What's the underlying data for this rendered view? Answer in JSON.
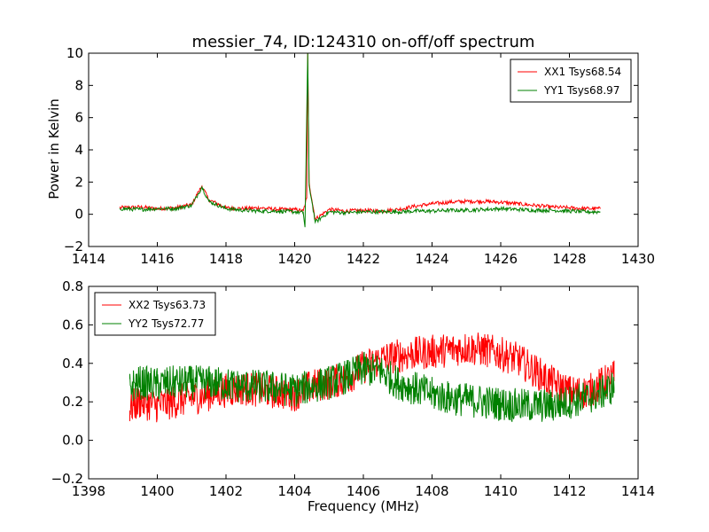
{
  "chart_data": [
    {
      "type": "line",
      "title": "messier_74, ID:124310 on-off/off spectrum",
      "ylabel": "Power in Kelvin",
      "xlabel": "",
      "xlim": [
        1414,
        1430
      ],
      "ylim": [
        -2,
        10
      ],
      "xticks": [
        "1414",
        "1416",
        "1418",
        "1420",
        "1422",
        "1424",
        "1426",
        "1428",
        "1430"
      ],
      "yticks": [
        "−2",
        "0",
        "2",
        "4",
        "6",
        "8",
        "10"
      ],
      "legend_position": "top-right",
      "grid": false,
      "series": [
        {
          "name": "XX1 Tsys68.54",
          "color": "#ff0000",
          "x": [
            1414.9,
            1415.5,
            1416.0,
            1416.5,
            1417.0,
            1417.2,
            1417.3,
            1417.5,
            1418.0,
            1418.5,
            1419.0,
            1419.5,
            1420.0,
            1420.25,
            1420.35,
            1420.38,
            1420.42,
            1420.5,
            1420.6,
            1421.0,
            1421.5,
            1422.0,
            1422.5,
            1423.0,
            1423.5,
            1424.0,
            1424.5,
            1425.0,
            1425.5,
            1426.0,
            1426.5,
            1427.0,
            1427.5,
            1428.0,
            1428.5,
            1428.9
          ],
          "y": [
            0.4,
            0.45,
            0.35,
            0.4,
            0.6,
            1.4,
            1.75,
            0.9,
            0.4,
            0.35,
            0.4,
            0.3,
            0.3,
            0.2,
            1.0,
            10.0,
            2.0,
            0.9,
            -0.3,
            0.3,
            0.2,
            0.25,
            0.2,
            0.3,
            0.5,
            0.65,
            0.75,
            0.8,
            0.8,
            0.75,
            0.65,
            0.55,
            0.45,
            0.4,
            0.35,
            0.35
          ]
        },
        {
          "name": "YY1 Tsys68.97",
          "color": "#008000",
          "x": [
            1414.9,
            1415.5,
            1416.0,
            1416.5,
            1417.0,
            1417.2,
            1417.3,
            1417.5,
            1418.0,
            1418.5,
            1419.0,
            1419.5,
            1420.0,
            1420.25,
            1420.3,
            1420.38,
            1420.42,
            1420.5,
            1420.6,
            1421.0,
            1421.5,
            1422.0,
            1422.5,
            1423.0,
            1423.5,
            1424.0,
            1424.5,
            1425.0,
            1425.5,
            1426.0,
            1426.5,
            1427.0,
            1427.5,
            1428.0,
            1428.5,
            1428.9
          ],
          "y": [
            0.35,
            0.3,
            0.35,
            0.35,
            0.55,
            1.3,
            1.7,
            0.8,
            0.35,
            0.25,
            0.2,
            0.2,
            0.15,
            0.1,
            -0.8,
            10.0,
            1.8,
            0.8,
            -0.5,
            0.15,
            0.1,
            0.15,
            0.15,
            0.15,
            0.2,
            0.2,
            0.25,
            0.25,
            0.3,
            0.35,
            0.3,
            0.25,
            0.25,
            0.2,
            0.15,
            0.15
          ]
        }
      ]
    },
    {
      "type": "line",
      "title": "",
      "xlabel": "Frequency (MHz)",
      "ylabel": "",
      "xlim": [
        1398,
        1414
      ],
      "ylim": [
        -0.2,
        0.8
      ],
      "xticks": [
        "1398",
        "1400",
        "1402",
        "1404",
        "1406",
        "1408",
        "1410",
        "1412",
        "1414"
      ],
      "yticks": [
        "−0.2",
        "0.0",
        "0.2",
        "0.4",
        "0.6",
        "0.8"
      ],
      "legend_position": "top-left",
      "grid": false,
      "series": [
        {
          "name": "XX2 Tsys63.73",
          "color": "#ff0000",
          "x": [
            1399.2,
            1399.5,
            1400.0,
            1400.5,
            1401.0,
            1401.5,
            1402.0,
            1402.5,
            1403.0,
            1403.5,
            1404.0,
            1404.5,
            1405.0,
            1405.5,
            1406.0,
            1406.5,
            1407.0,
            1407.5,
            1408.0,
            1408.5,
            1409.0,
            1409.5,
            1410.0,
            1410.5,
            1411.0,
            1411.5,
            1412.0,
            1412.5,
            1413.0,
            1413.3
          ],
          "y": [
            0.17,
            0.2,
            0.18,
            0.2,
            0.22,
            0.24,
            0.26,
            0.27,
            0.26,
            0.25,
            0.24,
            0.28,
            0.3,
            0.32,
            0.38,
            0.42,
            0.44,
            0.45,
            0.46,
            0.47,
            0.48,
            0.47,
            0.45,
            0.42,
            0.36,
            0.3,
            0.25,
            0.25,
            0.3,
            0.33
          ]
        },
        {
          "name": "YY2 Tsys72.77",
          "color": "#008000",
          "x": [
            1399.2,
            1399.5,
            1400.0,
            1400.5,
            1401.0,
            1401.5,
            1402.0,
            1402.5,
            1403.0,
            1403.5,
            1404.0,
            1404.5,
            1405.0,
            1405.5,
            1406.0,
            1406.5,
            1407.0,
            1407.5,
            1408.0,
            1408.5,
            1409.0,
            1409.5,
            1410.0,
            1410.5,
            1411.0,
            1411.5,
            1412.0,
            1412.5,
            1413.0,
            1413.3
          ],
          "y": [
            0.28,
            0.3,
            0.29,
            0.3,
            0.3,
            0.3,
            0.29,
            0.28,
            0.28,
            0.27,
            0.26,
            0.28,
            0.3,
            0.33,
            0.37,
            0.36,
            0.3,
            0.27,
            0.24,
            0.22,
            0.21,
            0.2,
            0.19,
            0.18,
            0.18,
            0.18,
            0.2,
            0.22,
            0.25,
            0.28
          ]
        }
      ]
    }
  ]
}
